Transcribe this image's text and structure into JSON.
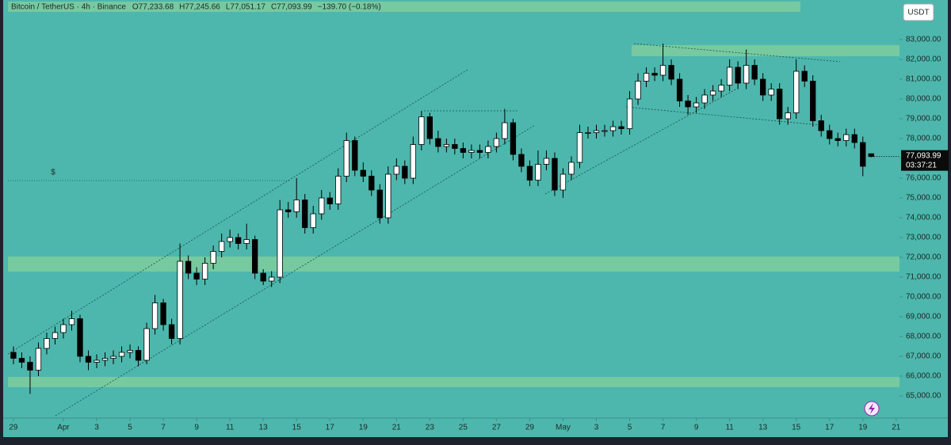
{
  "chart_data": {
    "type": "candlestick",
    "title": "Bitcoin / TetherUS · 4h · Binance",
    "ohlc_legend": [
      "O77,233.68",
      "H77,245.66",
      "L77,051.17",
      "C77,093.99",
      "−139.70 (−0.18%)"
    ],
    "currency": "USDT",
    "price_tag": [
      "77,093.99",
      "03:37:21"
    ],
    "marker": "$",
    "up_color": "#ffffff",
    "down_color": "#000000",
    "xlim": [
      -0.33,
      53.2
    ],
    "ylim": [
      64000,
      85000
    ],
    "xticks": [
      {
        "value": 0,
        "label": "29"
      },
      {
        "value": 3,
        "label": "Apr"
      },
      {
        "value": 5,
        "label": "3"
      },
      {
        "value": 7,
        "label": "5"
      },
      {
        "value": 9,
        "label": "7"
      },
      {
        "value": 11,
        "label": "9"
      },
      {
        "value": 13,
        "label": "11"
      },
      {
        "value": 15,
        "label": "13"
      },
      {
        "value": 17,
        "label": "15"
      },
      {
        "value": 19,
        "label": "17"
      },
      {
        "value": 21,
        "label": "19"
      },
      {
        "value": 23,
        "label": "21"
      },
      {
        "value": 25,
        "label": "23"
      },
      {
        "value": 27,
        "label": "25"
      },
      {
        "value": 29,
        "label": "27"
      },
      {
        "value": 31,
        "label": "29"
      },
      {
        "value": 33,
        "label": "May"
      },
      {
        "value": 35,
        "label": "3"
      },
      {
        "value": 37,
        "label": "5"
      },
      {
        "value": 39,
        "label": "7"
      },
      {
        "value": 41,
        "label": "9"
      },
      {
        "value": 43,
        "label": "11"
      },
      {
        "value": 45,
        "label": "13"
      },
      {
        "value": 47,
        "label": "15"
      },
      {
        "value": 49,
        "label": "17"
      },
      {
        "value": 51,
        "label": "19"
      },
      {
        "value": 53,
        "label": "21"
      }
    ],
    "yticks": [
      {
        "value": 65000,
        "label": "65,000.00"
      },
      {
        "value": 66000,
        "label": "66,000.00"
      },
      {
        "value": 67000,
        "label": "67,000.00"
      },
      {
        "value": 68000,
        "label": "68,000.00"
      },
      {
        "value": 69000,
        "label": "69,000.00"
      },
      {
        "value": 70000,
        "label": "70,000.00"
      },
      {
        "value": 71000,
        "label": "71,000.00"
      },
      {
        "value": 72000,
        "label": "72,000.00"
      },
      {
        "value": 73000,
        "label": "73,000.00"
      },
      {
        "value": 74000,
        "label": "74,000.00"
      },
      {
        "value": 75000,
        "label": "75,000.00"
      },
      {
        "value": 76000,
        "label": "76,000.00"
      },
      {
        "value": 77000,
        "label": "77,000.00"
      },
      {
        "value": 78000,
        "label": "78,000.00"
      },
      {
        "value": 79000,
        "label": "79,000.00"
      },
      {
        "value": 80000,
        "label": "80,000.00"
      },
      {
        "value": 81000,
        "label": "81,000.00"
      },
      {
        "value": 82000,
        "label": "82,000.00"
      },
      {
        "value": 83000,
        "label": "83,000.00"
      }
    ],
    "x": [
      0,
      0.5,
      1,
      1.5,
      2,
      2.5,
      3,
      3.5,
      4,
      4.5,
      5,
      5.5,
      6,
      6.5,
      7,
      7.5,
      8,
      8.5,
      9,
      9.5,
      10,
      10.5,
      11,
      11.5,
      12,
      12.5,
      13,
      13.5,
      14,
      14.5,
      15,
      15.5,
      16,
      16.5,
      17,
      17.5,
      18,
      18.5,
      19,
      19.5,
      20,
      20.5,
      21,
      21.5,
      22,
      22.5,
      23,
      23.5,
      24,
      24.5,
      25,
      25.5,
      26,
      26.5,
      27,
      27.5,
      28,
      28.5,
      29,
      29.5,
      30,
      30.5,
      31,
      31.5,
      32,
      32.5,
      33,
      33.5,
      34,
      34.5,
      35,
      35.5,
      36,
      36.5,
      37,
      37.5,
      38,
      38.5,
      39,
      39.5,
      40,
      40.5,
      41,
      41.5,
      42,
      42.5,
      43,
      43.5,
      44,
      44.5,
      45,
      45.5,
      46,
      46.5,
      47,
      47.5,
      48,
      48.5,
      49,
      49.5,
      50,
      50.5,
      51,
      51.5
    ],
    "open": [
      67200,
      66900,
      66700,
      66300,
      67400,
      67900,
      68200,
      68600,
      68900,
      67000,
      66700,
      66800,
      66900,
      67000,
      67200,
      67300,
      66800,
      68400,
      69700,
      68600,
      67900,
      71800,
      71200,
      70900,
      71700,
      72300,
      72800,
      73000,
      72700,
      72900,
      71200,
      70800,
      71000,
      74400,
      74300,
      74900,
      73500,
      74200,
      75000,
      74700,
      76100,
      77900,
      76400,
      76100,
      75400,
      74000,
      76200,
      76600,
      76000,
      77700,
      79100,
      78000,
      77600,
      77700,
      77500,
      77300,
      77400,
      77300,
      77600,
      78000,
      78800,
      77200,
      76600,
      75900,
      76700,
      77000,
      75400,
      76200,
      76800,
      78300,
      78300,
      78400,
      78400,
      78600,
      78500,
      80000,
      80900,
      81300,
      81200,
      81700,
      81000,
      79900,
      79600,
      79800,
      80200,
      80400,
      80700,
      81600,
      80800,
      81700,
      81000,
      80200,
      80500,
      79000,
      79300,
      81400,
      80900,
      78900,
      78400,
      78000,
      77900,
      78200,
      77800,
      77233.68
    ],
    "high": [
      67500,
      67200,
      67000,
      67700,
      68200,
      68500,
      68900,
      69300,
      69100,
      67300,
      67100,
      67200,
      67300,
      67500,
      67600,
      67500,
      68700,
      70100,
      69900,
      68900,
      72700,
      72100,
      71500,
      72000,
      72600,
      73200,
      73400,
      73200,
      73700,
      73100,
      71400,
      71300,
      74900,
      74800,
      76000,
      75200,
      74600,
      75400,
      75300,
      76500,
      78300,
      78100,
      76800,
      76400,
      75700,
      76600,
      77000,
      76900,
      78100,
      79400,
      79300,
      78400,
      78000,
      78000,
      77800,
      77700,
      77700,
      77900,
      78300,
      79500,
      79000,
      77500,
      76900,
      77400,
      77400,
      77300,
      76500,
      77100,
      78700,
      78600,
      78700,
      78700,
      78900,
      78900,
      80400,
      81300,
      81600,
      81600,
      82800,
      82000,
      81300,
      80200,
      80100,
      80500,
      80700,
      81000,
      82000,
      81900,
      82500,
      82000,
      81300,
      80800,
      80800,
      79600,
      82000,
      81700,
      81200,
      79200,
      78700,
      78300,
      78500,
      78500,
      78100,
      77245.66
    ],
    "low": [
      66600,
      66400,
      65100,
      66000,
      67100,
      67600,
      67900,
      68300,
      66700,
      66300,
      66400,
      66500,
      66600,
      66700,
      66900,
      66500,
      66600,
      68100,
      68300,
      67600,
      67600,
      70900,
      70600,
      70600,
      71400,
      72000,
      72500,
      72400,
      72400,
      70900,
      70600,
      70500,
      70700,
      74000,
      74000,
      73200,
      73200,
      73900,
      74400,
      74400,
      75800,
      76100,
      75800,
      75100,
      73700,
      73700,
      75900,
      75700,
      75700,
      77400,
      77700,
      77300,
      77300,
      77200,
      77000,
      77000,
      77000,
      77000,
      77300,
      77700,
      76900,
      76300,
      75600,
      75600,
      76400,
      75100,
      75000,
      75900,
      76500,
      78000,
      78000,
      78100,
      78100,
      78200,
      78200,
      79700,
      80600,
      80900,
      80900,
      80700,
      79600,
      79200,
      79300,
      79500,
      79900,
      80100,
      80400,
      80500,
      80500,
      80700,
      79900,
      79900,
      78700,
      78700,
      79000,
      80600,
      78600,
      78100,
      77700,
      77600,
      77600,
      77500,
      76100,
      77051.17
    ],
    "close": [
      66900,
      66700,
      66300,
      67400,
      67900,
      68200,
      68600,
      68900,
      67000,
      66700,
      66800,
      66900,
      67000,
      67200,
      67300,
      66800,
      68400,
      69700,
      68600,
      67900,
      71800,
      71200,
      70900,
      71700,
      72300,
      72800,
      73000,
      72700,
      72900,
      71200,
      70800,
      71000,
      74400,
      74300,
      74900,
      73500,
      74200,
      75000,
      74700,
      76100,
      77900,
      76400,
      76100,
      75400,
      74000,
      76200,
      76600,
      76000,
      77700,
      79100,
      78000,
      77600,
      77700,
      77500,
      77300,
      77400,
      77300,
      77600,
      78000,
      78800,
      77200,
      76600,
      75900,
      76700,
      77000,
      75400,
      76200,
      76800,
      78300,
      78300,
      78400,
      78400,
      78600,
      78500,
      80000,
      80900,
      81300,
      81200,
      81700,
      81000,
      79900,
      79600,
      79800,
      80200,
      80400,
      80700,
      81600,
      80800,
      81700,
      81000,
      80200,
      80500,
      79000,
      79300,
      81400,
      80900,
      78900,
      78400,
      78000,
      77900,
      78200,
      77800,
      76600,
      77093.99
    ]
  }
}
